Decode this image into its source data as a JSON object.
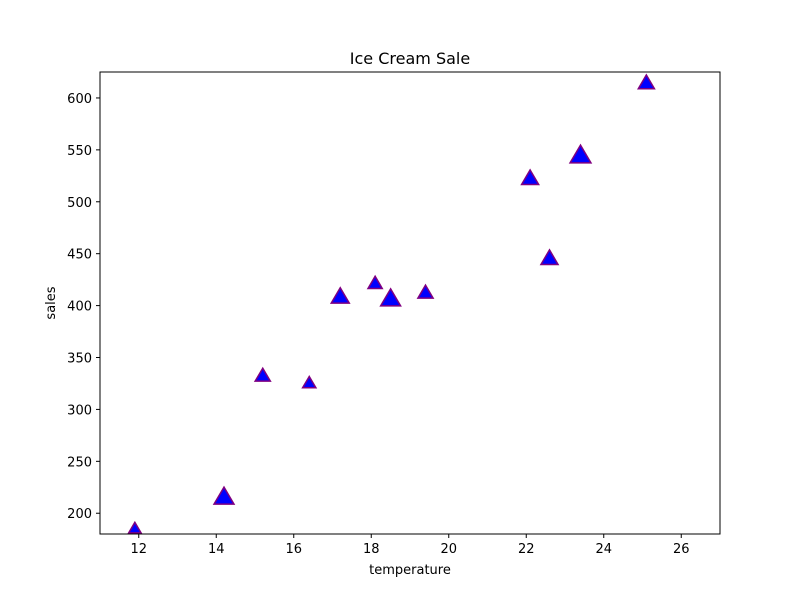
{
  "chart_data": {
    "type": "scatter",
    "title": "Ice Cream Sale",
    "xlabel": "temperature",
    "ylabel": "sales",
    "xlim": [
      11,
      27
    ],
    "ylim": [
      180,
      625
    ],
    "xticks": [
      12,
      14,
      16,
      18,
      20,
      22,
      24,
      26
    ],
    "yticks": [
      200,
      250,
      300,
      350,
      400,
      450,
      500,
      550,
      600
    ],
    "marker": "triangle-up",
    "marker_fill": "#0000ff",
    "marker_edge": "#800080",
    "grid": false,
    "points": [
      {
        "x": 14.2,
        "y": 215,
        "size": 1.3
      },
      {
        "x": 16.4,
        "y": 325,
        "size": 0.6
      },
      {
        "x": 11.9,
        "y": 185,
        "size": 0.5
      },
      {
        "x": 15.2,
        "y": 332,
        "size": 0.8
      },
      {
        "x": 18.5,
        "y": 406,
        "size": 1.3
      },
      {
        "x": 22.1,
        "y": 522,
        "size": 1.0
      },
      {
        "x": 19.4,
        "y": 412,
        "size": 0.8
      },
      {
        "x": 25.1,
        "y": 614,
        "size": 0.9
      },
      {
        "x": 23.4,
        "y": 544,
        "size": 1.4
      },
      {
        "x": 18.1,
        "y": 421,
        "size": 0.7
      },
      {
        "x": 22.6,
        "y": 445,
        "size": 1.0
      },
      {
        "x": 17.2,
        "y": 408,
        "size": 1.1
      }
    ]
  }
}
